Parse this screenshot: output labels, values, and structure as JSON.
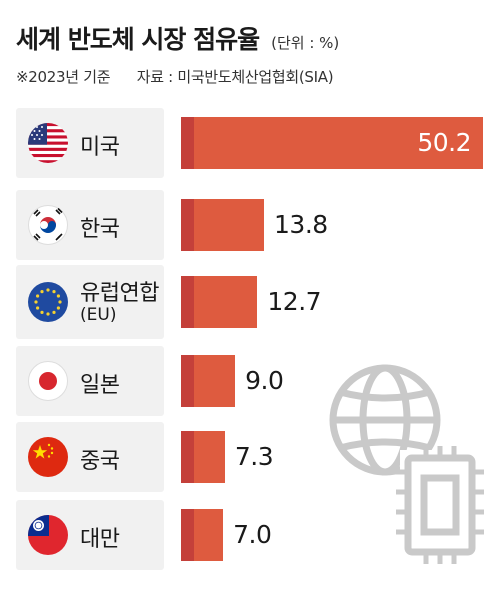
{
  "header": {
    "title": "세계 반도체 시장 점유율",
    "unit": "(단위 : %)",
    "note": "※2023년 기준",
    "source": "자료 : 미국반도체산업협회(SIA)"
  },
  "colors": {
    "bar": "#de5b3f",
    "bar_accent": "#c4403a",
    "label_bg": "#f1f1f1"
  },
  "chart_data": {
    "type": "bar",
    "orientation": "horizontal",
    "title": "세계 반도체 시장 점유율",
    "unit": "%",
    "categories": [
      "미국",
      "한국",
      "유럽연합",
      "일본",
      "중국",
      "대만"
    ],
    "category_sublabels": [
      "",
      "",
      "(EU)",
      "",
      "",
      ""
    ],
    "values": [
      50.2,
      13.8,
      12.7,
      9.0,
      7.3,
      7.0
    ],
    "value_labels": [
      "50.2",
      "13.8",
      "12.7",
      "9.0",
      "7.3",
      "7.0"
    ],
    "flag_icons": [
      "us-flag-icon",
      "kr-flag-icon",
      "eu-flag-icon",
      "jp-flag-icon",
      "cn-flag-icon",
      "tw-flag-icon"
    ],
    "xlim": [
      0,
      50.2
    ]
  }
}
